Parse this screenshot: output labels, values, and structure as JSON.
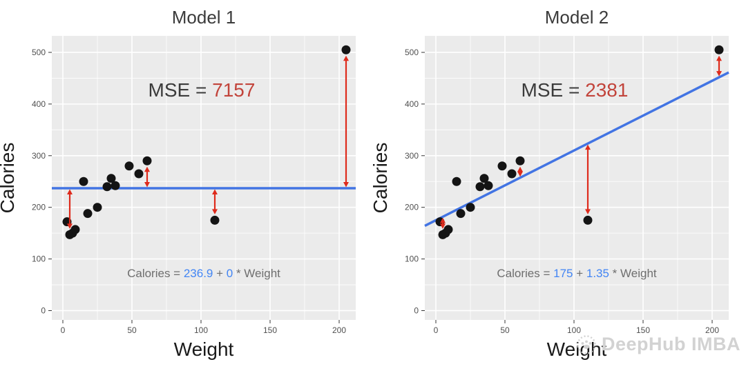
{
  "watermark": {
    "text": "DeepHub IMBA"
  },
  "colors": {
    "page_bg": "#FFFFFF",
    "panel": "#EBEBEB",
    "grid": "#FFFFFF",
    "point": "#141414",
    "line_blue": "#4274E3",
    "arrow_red": "#DE2A1B",
    "mse_red": "#C2443B",
    "eq_value_blue": "#4285F4",
    "eq_text_gray": "#6E6E6E",
    "text_dark": "#3B3B3B",
    "axis_title": "#1A1A1A",
    "tick_text": "#4F4F4F",
    "tick_mark": "#333333"
  },
  "chart_data": [
    {
      "type": "scatter",
      "title": "Model 1",
      "xlabel": "Weight",
      "ylabel": "Calories",
      "xlim": [
        -8,
        212
      ],
      "ylim": [
        -18,
        532
      ],
      "x_ticks": [
        0,
        50,
        100,
        150,
        200
      ],
      "y_ticks": [
        0,
        100,
        200,
        300,
        400,
        500
      ],
      "grid": true,
      "points": [
        [
          3,
          172
        ],
        [
          5,
          147
        ],
        [
          7,
          150
        ],
        [
          9,
          157
        ],
        [
          15,
          250
        ],
        [
          18,
          188
        ],
        [
          25,
          200
        ],
        [
          32,
          240
        ],
        [
          35,
          256
        ],
        [
          38,
          242
        ],
        [
          48,
          280
        ],
        [
          55,
          265
        ],
        [
          61,
          290
        ],
        [
          110,
          175
        ],
        [
          205,
          505
        ]
      ],
      "line": {
        "intercept": 236.9,
        "slope": 0
      },
      "residual_arrow_point_indexes": [
        1,
        12,
        13,
        14
      ],
      "mse": {
        "label": "MSE = ",
        "value": "7157"
      },
      "equation_parts": [
        {
          "text": "Calories = ",
          "color": "gray"
        },
        {
          "text": "236.9",
          "color": "blue"
        },
        {
          "text": " + ",
          "color": "gray"
        },
        {
          "text": "0",
          "color": "blue"
        },
        {
          "text": " * Weight",
          "color": "gray"
        }
      ]
    },
    {
      "type": "scatter",
      "title": "Model 2",
      "xlabel": "Weight",
      "ylabel": "Calories",
      "xlim": [
        -8,
        212
      ],
      "ylim": [
        -18,
        532
      ],
      "x_ticks": [
        0,
        50,
        100,
        150,
        200
      ],
      "y_ticks": [
        0,
        100,
        200,
        300,
        400,
        500
      ],
      "grid": true,
      "points": [
        [
          3,
          172
        ],
        [
          5,
          147
        ],
        [
          7,
          150
        ],
        [
          9,
          157
        ],
        [
          15,
          250
        ],
        [
          18,
          188
        ],
        [
          25,
          200
        ],
        [
          32,
          240
        ],
        [
          35,
          256
        ],
        [
          38,
          242
        ],
        [
          48,
          280
        ],
        [
          55,
          265
        ],
        [
          61,
          290
        ],
        [
          110,
          175
        ],
        [
          205,
          505
        ]
      ],
      "line": {
        "intercept": 175,
        "slope": 1.35
      },
      "residual_arrow_point_indexes": [
        1,
        12,
        13,
        14
      ],
      "mse": {
        "label": "MSE = ",
        "value": "2381"
      },
      "equation_parts": [
        {
          "text": "Calories = ",
          "color": "gray"
        },
        {
          "text": "175",
          "color": "blue"
        },
        {
          "text": " + ",
          "color": "gray"
        },
        {
          "text": "1.35",
          "color": "blue"
        },
        {
          "text": " * Weight",
          "color": "gray"
        }
      ]
    }
  ]
}
